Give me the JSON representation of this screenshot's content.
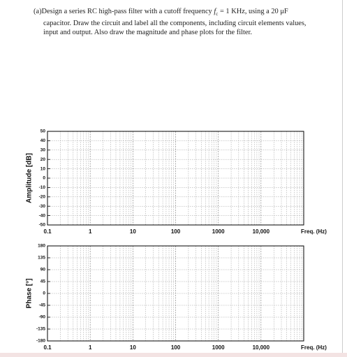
{
  "question": {
    "label": "(a)",
    "line1_before": "Design a series RC high-pass filter with a cutoff frequency ",
    "symbol": "f",
    "subscript": "c",
    "line1_after": " = 1 KHz, using a 20 μF",
    "line2": "capacitor. Draw the circuit and label all the components, including circuit elements values,",
    "line3": "input and output. Also draw the magnitude and phase plots for the filter."
  },
  "plots": [
    {
      "ylabel": "Amplitude [dB]",
      "xlabel": "Freq. (Hz)",
      "log_x": true,
      "xlim": [
        0.1,
        100000
      ],
      "ylim": [
        -50,
        50
      ],
      "xticks": [
        0.1,
        1,
        10,
        100,
        1000,
        {
          "value": 10000,
          "label": "10,000"
        }
      ],
      "yticks": [
        -50,
        -40,
        -30,
        -20,
        -10,
        0,
        10,
        20,
        30,
        40,
        50
      ]
    },
    {
      "ylabel": "Phase [°]",
      "xlabel": "Freq. (Hz)",
      "log_x": true,
      "xlim": [
        0.1,
        100000
      ],
      "ylim": [
        -180,
        180
      ],
      "xticks": [
        0.1,
        1,
        10,
        100,
        1000,
        {
          "value": 10000,
          "label": "10,000"
        }
      ],
      "yticks": [
        -180,
        -135,
        -90,
        -45,
        0,
        45,
        90,
        135,
        180
      ]
    }
  ]
}
